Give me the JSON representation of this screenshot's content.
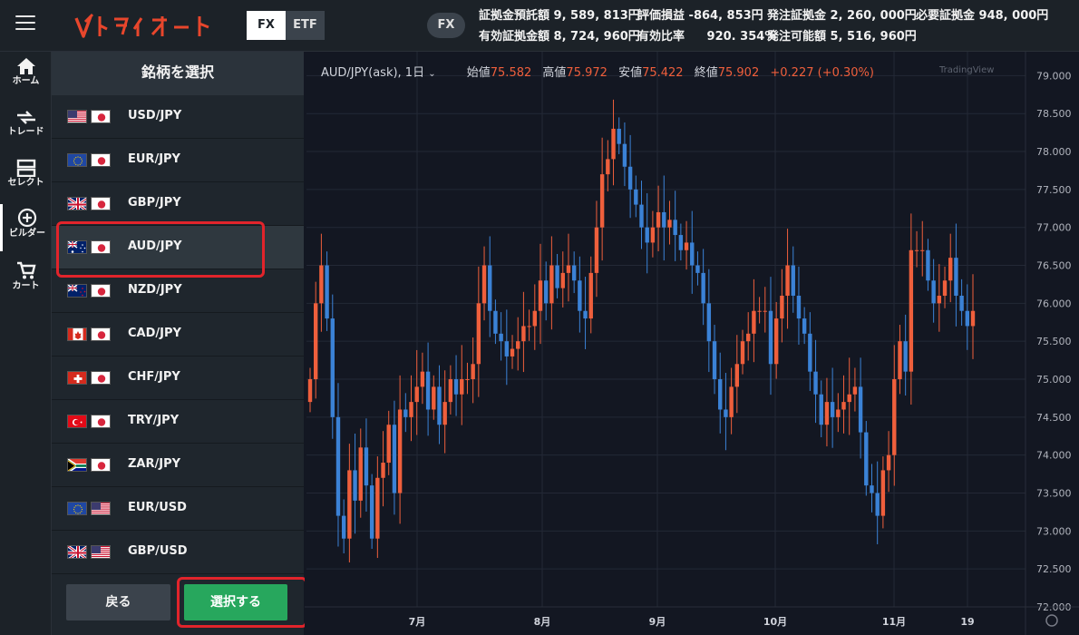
{
  "topbar": {
    "seg": [
      "FX",
      "ETF"
    ],
    "fx_pill": "FX",
    "acct_col1": [
      {
        "label": "証拠金預託額",
        "value": "9, 589, 813円"
      },
      {
        "label": "有効証拠金額",
        "value": "8, 724, 960円"
      }
    ],
    "acct_col2": [
      {
        "label": "評価損益",
        "value": "-864, 853円"
      },
      {
        "label": "有効比率",
        "value": "920. 354%"
      }
    ],
    "acct_col3": [
      {
        "label": "発注証拠金",
        "value": "2, 260, 000円"
      },
      {
        "label": "発注可能額",
        "value": "5, 516, 960円"
      }
    ],
    "acct_col4": [
      {
        "label": "必要証拠金",
        "value": "948, 000円"
      }
    ]
  },
  "nav": [
    {
      "label": "ホーム",
      "icon": "home-icon"
    },
    {
      "label": "トレード",
      "icon": "trade-icon"
    },
    {
      "label": "セレクト",
      "icon": "select-icon"
    },
    {
      "label": "ビルダー",
      "icon": "builder-icon"
    },
    {
      "label": "カート",
      "icon": "cart-icon"
    }
  ],
  "panel": {
    "title": "銘柄を選択",
    "back_label": "戻る",
    "ok_label": "選択する",
    "instruments": [
      {
        "name": "USD/JPY",
        "flags": [
          "us",
          "jp"
        ]
      },
      {
        "name": "EUR/JPY",
        "flags": [
          "eu",
          "jp"
        ]
      },
      {
        "name": "GBP/JPY",
        "flags": [
          "gb",
          "jp"
        ]
      },
      {
        "name": "AUD/JPY",
        "flags": [
          "au",
          "jp"
        ],
        "selected": true
      },
      {
        "name": "NZD/JPY",
        "flags": [
          "nz",
          "jp"
        ]
      },
      {
        "name": "CAD/JPY",
        "flags": [
          "ca",
          "jp"
        ]
      },
      {
        "name": "CHF/JPY",
        "flags": [
          "ch",
          "jp"
        ]
      },
      {
        "name": "TRY/JPY",
        "flags": [
          "tr",
          "jp"
        ]
      },
      {
        "name": "ZAR/JPY",
        "flags": [
          "za",
          "jp"
        ]
      },
      {
        "name": "EUR/USD",
        "flags": [
          "eu",
          "us"
        ]
      },
      {
        "name": "GBP/USD",
        "flags": [
          "gb",
          "us"
        ]
      }
    ]
  },
  "chart_header": {
    "symbol": "AUD/JPY(ask), 1日 ",
    "open_label": "始値",
    "open": "75.582",
    "high_label": "高値",
    "high": "75.972",
    "low_label": "安値",
    "low": "75.422",
    "close_label": "終値",
    "close": "75.902",
    "change": "+0.227 (+0.30%)",
    "watermark": "TradingView"
  },
  "colors": {
    "up": "#ef5f3c",
    "down": "#3b82d6",
    "select_highlight": "#e2242b",
    "ok_button": "#27a75d"
  },
  "chart_data": {
    "type": "candlestick",
    "ylim": [
      72.0,
      79.1
    ],
    "y_ticks": [
      "79.000",
      "78.500",
      "78.000",
      "77.500",
      "77.000",
      "76.500",
      "76.000",
      "75.500",
      "75.000",
      "74.500",
      "74.000",
      "73.500",
      "73.000",
      "72.500",
      "72.000"
    ],
    "x_ticks": [
      "7月",
      "8月",
      "9月",
      "10月",
      "11月",
      "19"
    ],
    "closes": [
      75.0,
      76.0,
      76.5,
      75.8,
      74.5,
      73.2,
      72.9,
      73.8,
      73.4,
      74.1,
      73.6,
      72.9,
      73.7,
      73.9,
      74.4,
      73.5,
      74.6,
      74.5,
      74.7,
      74.9,
      75.1,
      74.6,
      74.9,
      74.4,
      74.7,
      75.0,
      74.8,
      75.0,
      75.0,
      75.2,
      76.0,
      76.5,
      75.9,
      75.6,
      75.5,
      75.3,
      75.4,
      75.5,
      75.7,
      75.7,
      75.9,
      76.3,
      76.0,
      76.5,
      76.2,
      76.4,
      76.5,
      76.3,
      75.9,
      75.8,
      76.4,
      77.0,
      77.7,
      77.9,
      78.3,
      78.1,
      77.8,
      77.5,
      77.3,
      77.0,
      76.8,
      77.0,
      77.2,
      77.0,
      77.1,
      76.9,
      76.7,
      76.8,
      76.5,
      76.4,
      76.0,
      75.5,
      75.0,
      74.6,
      74.5,
      74.9,
      75.2,
      75.5,
      75.6,
      75.9,
      75.9,
      75.9,
      75.2,
      75.8,
      76.1,
      76.5,
      76.1,
      75.8,
      75.6,
      75.1,
      74.8,
      74.4,
      74.7,
      74.5,
      74.6,
      74.7,
      74.8,
      74.9,
      74.3,
      73.6,
      73.5,
      73.2,
      73.8,
      74.0,
      75.0,
      75.5,
      75.1,
      76.7,
      76.7,
      76.7,
      76.3,
      76.0,
      76.1,
      76.3,
      76.6,
      76.1,
      75.9,
      75.7,
      75.9
    ]
  }
}
